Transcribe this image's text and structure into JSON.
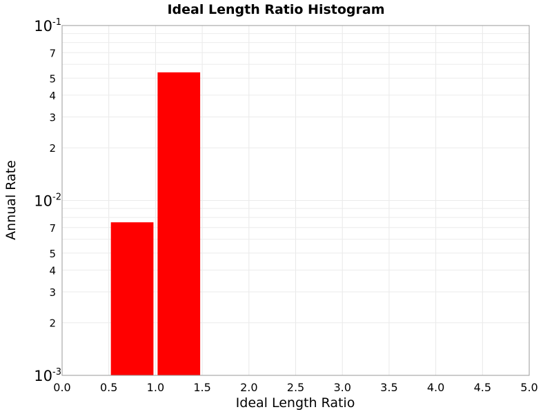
{
  "chart_data": {
    "type": "bar",
    "title": "Ideal Length Ratio Histogram",
    "xlabel": "Ideal Length Ratio",
    "ylabel": "Annual Rate",
    "xlim": [
      0.0,
      5.0
    ],
    "ylim": [
      0.001,
      0.1
    ],
    "y_scale": "log",
    "grid": true,
    "bar_color": "#ff0000",
    "x_tick_labels": [
      "0.0",
      "0.5",
      "1.0",
      "1.5",
      "2.0",
      "2.5",
      "3.0",
      "3.5",
      "4.0",
      "4.5",
      "5.0"
    ],
    "y_major_ticks": [
      {
        "base": "10",
        "exp": "-3"
      },
      {
        "base": "10",
        "exp": "-2"
      },
      {
        "base": "10",
        "exp": "-1"
      }
    ],
    "y_minor_tick_labels": [
      "2",
      "3",
      "4",
      "5",
      "7"
    ],
    "bins": [
      {
        "x_start": 0.5,
        "x_end": 1.0,
        "value": 0.0075
      },
      {
        "x_start": 1.0,
        "x_end": 1.5,
        "value": 0.054
      }
    ]
  }
}
